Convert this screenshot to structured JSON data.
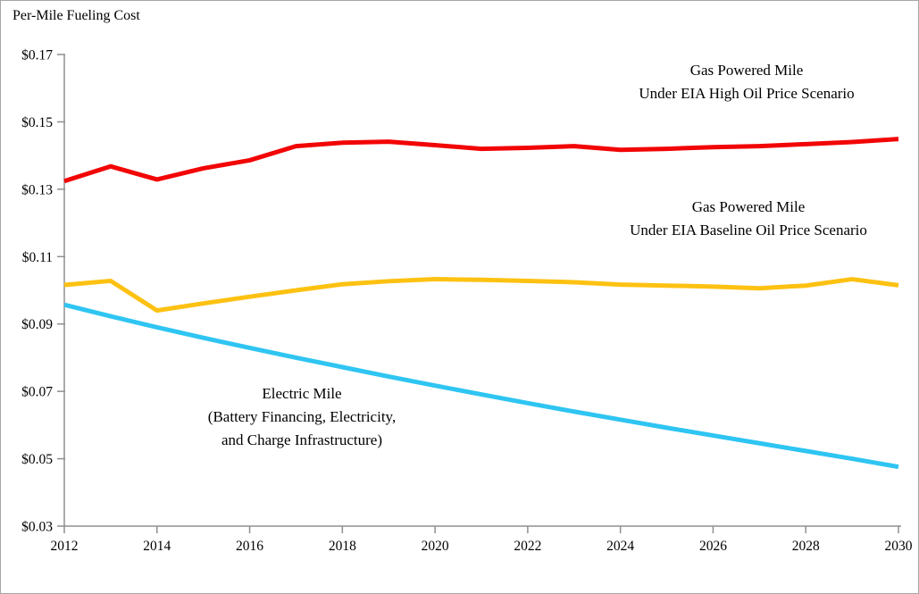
{
  "chart_data": {
    "type": "line",
    "title": "Per-Mile Fueling Cost",
    "xlabel": "",
    "ylabel": "Per-Mile Fueling Cost ($)",
    "xlim": [
      2012,
      2030
    ],
    "ylim": [
      0.03,
      0.17
    ],
    "grid": false,
    "axis_color": "#8f8f8f",
    "x": [
      2012,
      2013,
      2014,
      2015,
      2016,
      2017,
      2018,
      2019,
      2020,
      2021,
      2022,
      2023,
      2024,
      2025,
      2026,
      2027,
      2028,
      2029,
      2030
    ],
    "xticks": [
      {
        "value": 2012,
        "label": "2012"
      },
      {
        "value": 2014,
        "label": "2014"
      },
      {
        "value": 2016,
        "label": "2016"
      },
      {
        "value": 2018,
        "label": "2018"
      },
      {
        "value": 2020,
        "label": "2020"
      },
      {
        "value": 2022,
        "label": "2022"
      },
      {
        "value": 2024,
        "label": "2024"
      },
      {
        "value": 2026,
        "label": "2026"
      },
      {
        "value": 2028,
        "label": "2028"
      },
      {
        "value": 2030,
        "label": "2030"
      }
    ],
    "yticks": [
      {
        "value": 0.03,
        "label": "$0.03"
      },
      {
        "value": 0.05,
        "label": "$0.05"
      },
      {
        "value": 0.07,
        "label": "$0.07"
      },
      {
        "value": 0.09,
        "label": "$0.09"
      },
      {
        "value": 0.11,
        "label": "$0.11"
      },
      {
        "value": 0.13,
        "label": "$0.13"
      },
      {
        "value": 0.15,
        "label": "$0.15"
      },
      {
        "value": 0.17,
        "label": "$0.17"
      }
    ],
    "series": [
      {
        "id": "gas-high-line",
        "name": "Gas Powered Mile Under EIA High Oil Price Scenario",
        "color": "#f20505",
        "width": 5,
        "values": [
          0.1324,
          0.1368,
          0.1329,
          0.1362,
          0.1386,
          0.1428,
          0.1438,
          0.1441,
          0.1431,
          0.142,
          0.1423,
          0.1428,
          0.1417,
          0.142,
          0.1425,
          0.1428,
          0.1434,
          0.144,
          0.1449
        ]
      },
      {
        "id": "gas-baseline-line",
        "name": "Gas Powered Mile Under EIA Baseline Oil Price Scenario",
        "color": "#fdc112",
        "width": 5,
        "values": [
          0.1016,
          0.1028,
          0.094,
          0.0961,
          0.0981,
          0.1,
          0.1018,
          0.1027,
          0.1033,
          0.1031,
          0.1028,
          0.1024,
          0.1017,
          0.1014,
          0.1011,
          0.1006,
          0.1014,
          0.1033,
          0.1015
        ]
      },
      {
        "id": "electric-line",
        "name": "Electric Mile (Battery Financing, Electricity, and Charge Infrastructure)",
        "color": "#2fc5f2",
        "width": 5,
        "values": [
          0.0957,
          0.0923,
          0.089,
          0.0859,
          0.0829,
          0.08,
          0.0772,
          0.0744,
          0.0717,
          0.0691,
          0.0665,
          0.064,
          0.0616,
          0.0592,
          0.0569,
          0.0546,
          0.0523,
          0.05,
          0.0476
        ]
      }
    ],
    "annotations": [
      {
        "lines": [
          "Gas Powered Mile",
          "Under EIA High Oil Price Scenario"
        ]
      },
      {
        "lines": [
          "Gas Powered Mile",
          "Under EIA Baseline Oil Price Scenario"
        ]
      },
      {
        "lines": [
          "Electric Mile",
          "(Battery Financing, Electricity,",
          "and Charge Infrastructure)"
        ]
      }
    ],
    "legend_position": "none"
  }
}
